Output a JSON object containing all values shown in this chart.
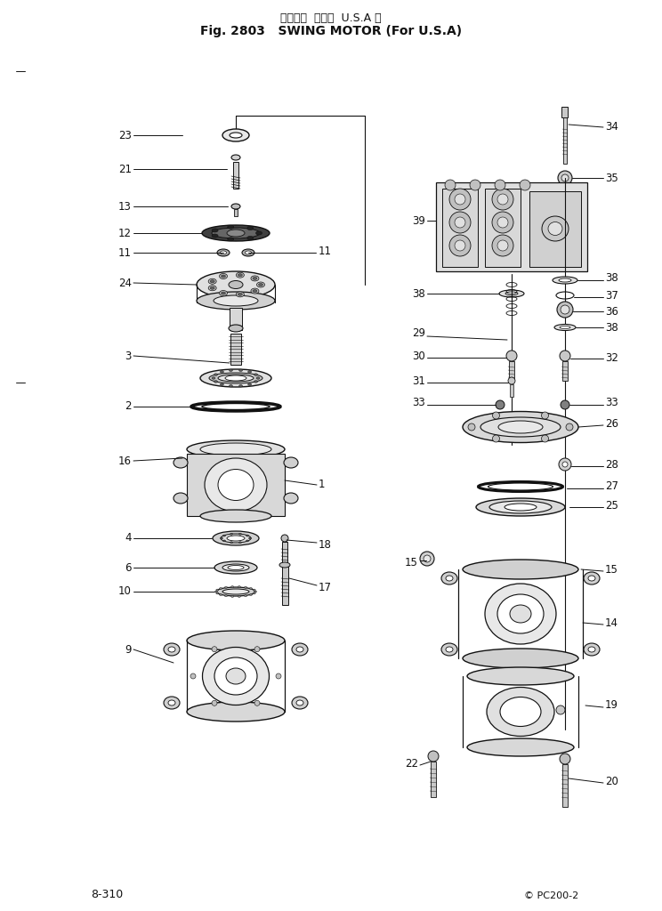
{
  "title_japanese": "スイング  モータ  U.S.A 向",
  "title_english": "Fig. 2803   SWING MOTOR (For U.S.A)",
  "page_number": "8-310",
  "copyright": "© PC200-2",
  "bg_color": "#ffffff",
  "line_color": "#111111",
  "text_color": "#111111",
  "figsize": [
    7.44,
    10.24
  ],
  "dpi": 100
}
